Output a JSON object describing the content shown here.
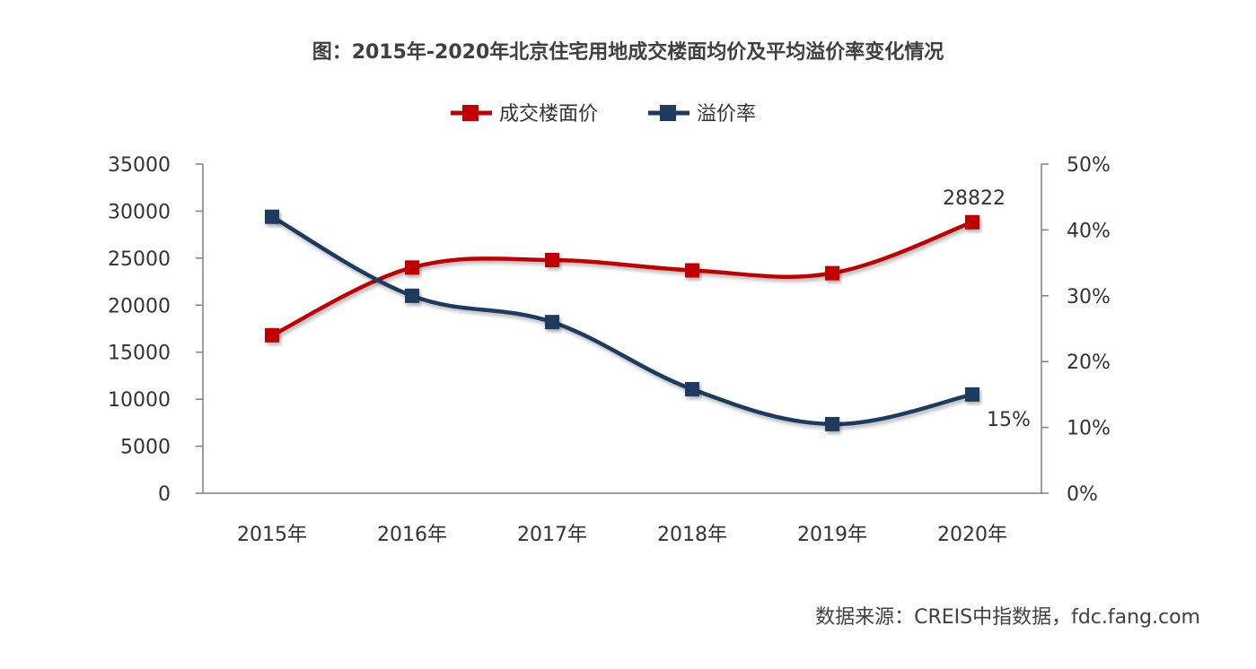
{
  "title": "图：2015年-2020年北京住宅用地成交楼面均价及平均溢价率变化情况",
  "source": "数据来源：CREIS中指数据，fdc.fang.com",
  "colors": {
    "price": "#c00000",
    "premium": "#1f3a5f",
    "axis": "#7f7f7f"
  },
  "chart_data": {
    "type": "line",
    "categories": [
      "2015年",
      "2016年",
      "2017年",
      "2018年",
      "2019年",
      "2020年"
    ],
    "series": [
      {
        "name": "成交楼面价",
        "axis": "left",
        "values": [
          16800,
          24000,
          24800,
          23700,
          23400,
          28822
        ]
      },
      {
        "name": "溢价率",
        "axis": "right",
        "values": [
          42,
          30,
          26,
          15.8,
          10.5,
          15
        ]
      }
    ],
    "y_left": {
      "ylim": [
        0,
        35000
      ],
      "ticks": [
        "35000",
        "30000",
        "25000",
        "20000",
        "15000",
        "10000",
        "5000",
        "0"
      ]
    },
    "y_right": {
      "ylim": [
        0,
        50
      ],
      "unit": "%",
      "ticks": [
        "50%",
        "40%",
        "30%",
        "20%",
        "10%",
        "0%"
      ]
    },
    "data_labels": {
      "price_last": "28822",
      "premium_last": "15%"
    },
    "legend": {
      "position": "top-center",
      "items": [
        "成交楼面价",
        "溢价率"
      ]
    },
    "grid": false
  }
}
